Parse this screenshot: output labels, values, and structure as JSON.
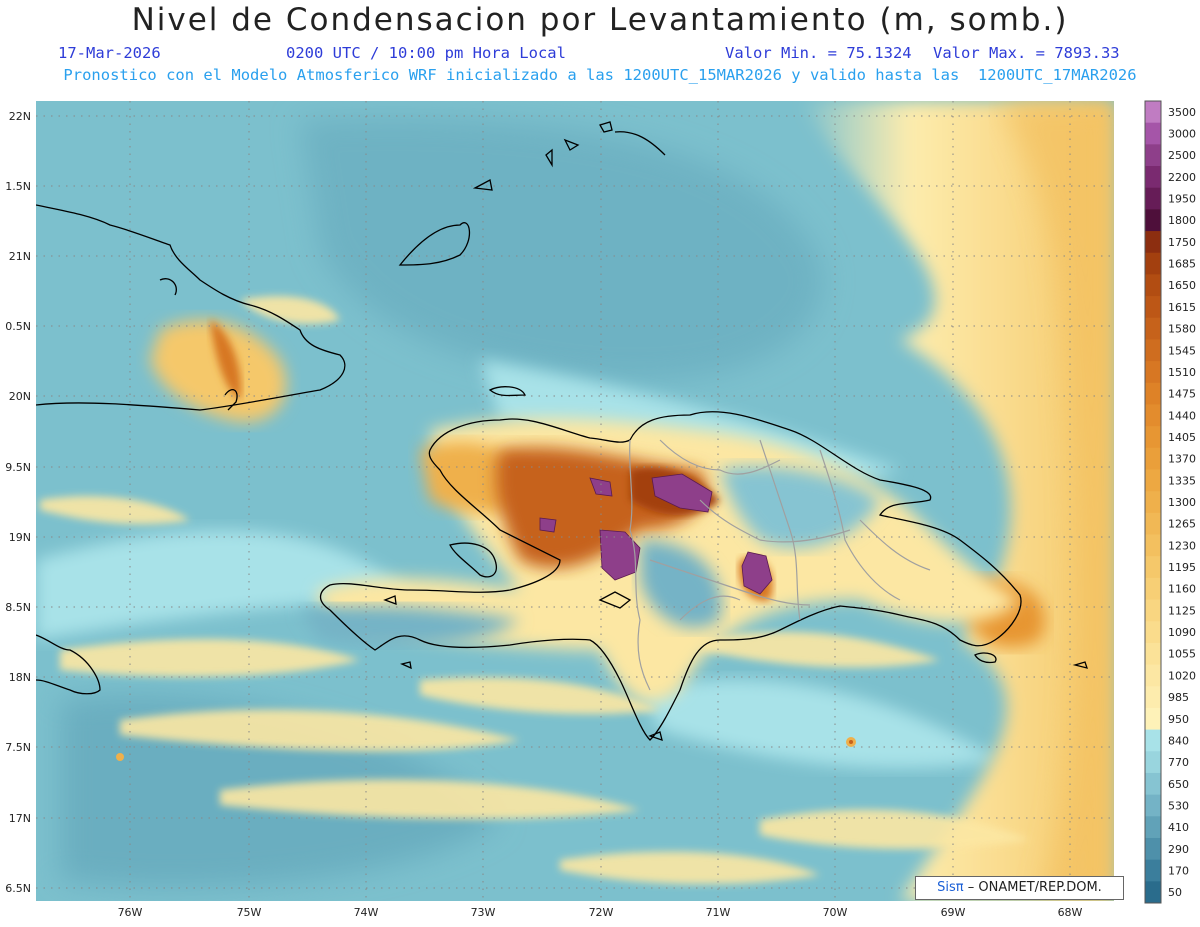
{
  "header": {
    "title": "Nivel de Condensacion por Levantamiento (m, somb.)",
    "date": "17-Mar-2026",
    "time": "0200 UTC / 10:00 pm Hora Local",
    "vmin": "Valor Min. = 75.1324",
    "vmax": "Valor Max. = 7893.33",
    "subtitle": "Pronostico con el Modelo Atmosferico WRF inicializado a las 1200UTC_15MAR2026 y valido hasta las  1200UTC_17MAR2026"
  },
  "axes": {
    "lat_labels": [
      "22N",
      "1.5N",
      "21N",
      "0.5N",
      "20N",
      "9.5N",
      "19N",
      "8.5N",
      "18N",
      "7.5N",
      "17N",
      "6.5N"
    ],
    "lon_labels": [
      "76W",
      "75W",
      "74W",
      "73W",
      "72W",
      "71W",
      "70W",
      "69W",
      "68W"
    ]
  },
  "colorbar": {
    "labels": [
      "3500",
      "3000",
      "2500",
      "2200",
      "1950",
      "1800",
      "1750",
      "1685",
      "1650",
      "1615",
      "1580",
      "1545",
      "1510",
      "1475",
      "1440",
      "1405",
      "1370",
      "1335",
      "1300",
      "1265",
      "1230",
      "1195",
      "1160",
      "1125",
      "1090",
      "1055",
      "1020",
      "985",
      "950",
      "840",
      "770",
      "650",
      "530",
      "410",
      "290",
      "170",
      "50"
    ],
    "colors": [
      "#c07cc2",
      "#a555a8",
      "#8e3f8a",
      "#7a2a70",
      "#661c57",
      "#4e0f3a",
      "#8c2e10",
      "#a3400f",
      "#b24d12",
      "#bd5716",
      "#c6621b",
      "#cf6d1f",
      "#d77723",
      "#de8227",
      "#e38c2d",
      "#e79633",
      "#ea9f3a",
      "#eda842",
      "#efb04b",
      "#f1b855",
      "#f3c05f",
      "#f5c86a",
      "#f7cf75",
      "#f9d681",
      "#fadc8c",
      "#fbe298",
      "#fce7a3",
      "#fdecad",
      "#fef2b8",
      "#a8e2e8",
      "#99d5de",
      "#86c4d2",
      "#74b3c6",
      "#61a2b8",
      "#4e90aa",
      "#3b7e9c",
      "#2a6c8c"
    ]
  },
  "credit": {
    "brand": "Sisπ",
    "text": "– ONAMET/REP.DOM."
  }
}
